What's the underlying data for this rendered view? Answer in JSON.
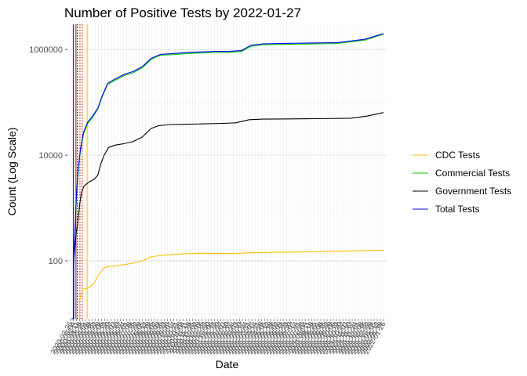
{
  "chart_data": {
    "type": "line",
    "title": "Number of Positive Tests by  2022-01-27",
    "xlabel": "Date",
    "ylabel": "Count (Log Scale)",
    "y_scale": "log10",
    "ylim": [
      8,
      3000000
    ],
    "y_ticks": [
      {
        "value": 100,
        "label": "100"
      },
      {
        "value": 10000,
        "label": "10000"
      },
      {
        "value": 1000000,
        "label": "1000000"
      }
    ],
    "x_range": [
      "2020-02-26",
      "2022-01-27"
    ],
    "x_tick_labels": [
      "2020-02-26",
      "2020-03-04",
      "2020-03-11",
      "2020-03-18",
      "2020-03-25",
      "2020-04-01",
      "2020-04-08",
      "2020-04-15",
      "2020-04-22",
      "2020-04-29",
      "2020-05-06",
      "2020-05-13",
      "2020-05-20",
      "2020-05-27",
      "2020-06-03",
      "2020-06-10",
      "2020-06-17",
      "2020-06-24",
      "2020-07-01",
      "2020-07-08",
      "2020-07-15",
      "2020-07-22",
      "2020-07-29",
      "2020-08-05",
      "2020-08-12",
      "2020-08-19",
      "2020-08-26",
      "2020-09-02",
      "2020-09-09",
      "2020-09-16",
      "2020-09-23",
      "2020-09-30",
      "2020-10-07",
      "2020-10-14",
      "2020-10-21",
      "2020-10-28",
      "2020-11-04",
      "2020-11-11",
      "2020-11-18",
      "2020-11-25",
      "2020-12-02",
      "2020-12-09",
      "2020-12-16",
      "2020-12-23",
      "2020-12-30",
      "2021-01-06",
      "2021-01-13",
      "2021-01-20",
      "2021-01-27",
      "2021-02-03",
      "2021-02-10",
      "2021-02-17",
      "2021-02-24",
      "2021-03-03",
      "2021-03-10",
      "2021-03-17",
      "2021-03-24",
      "2021-03-31",
      "2021-04-07",
      "2021-04-14",
      "2021-04-21",
      "2021-04-28",
      "2021-05-05",
      "2021-05-12",
      "2021-05-19",
      "2021-05-26",
      "2021-06-02",
      "2021-06-09",
      "2021-06-16",
      "2021-06-23",
      "2021-06-30",
      "2021-07-07",
      "2021-07-14",
      "2021-07-21",
      "2021-07-28",
      "2021-08-04",
      "2021-08-11",
      "2021-08-18",
      "2021-08-25",
      "2021-09-01",
      "2021-09-08",
      "2021-09-15",
      "2021-09-22",
      "2021-09-29",
      "2021-10-06",
      "2021-10-13",
      "2021-10-20",
      "2021-10-27",
      "2021-11-03",
      "2021-11-10",
      "2021-11-17",
      "2021-11-24",
      "2021-12-01",
      "2021-12-08",
      "2021-12-15",
      "2021-12-22",
      "2021-12-29",
      "2022-01-05",
      "2022-01-12",
      "2022-01-19",
      "2022-01-26"
    ],
    "legend_position": "right",
    "series": [
      {
        "name": "CDC Tests",
        "color": "#ffc000",
        "points": [
          [
            "2020-03-18",
            8
          ],
          [
            "2020-03-18",
            18
          ],
          [
            "2020-03-21",
            22
          ],
          [
            "2020-03-24",
            28
          ],
          [
            "2020-03-28",
            30
          ],
          [
            "2020-04-04",
            30
          ],
          [
            "2020-04-12",
            33
          ],
          [
            "2020-04-20",
            38
          ],
          [
            "2020-04-26",
            48
          ],
          [
            "2020-05-01",
            55
          ],
          [
            "2020-05-10",
            72
          ],
          [
            "2020-05-20",
            78
          ],
          [
            "2020-06-05",
            80
          ],
          [
            "2020-06-25",
            85
          ],
          [
            "2020-07-15",
            90
          ],
          [
            "2020-08-05",
            100
          ],
          [
            "2020-08-25",
            120
          ],
          [
            "2020-09-10",
            125
          ],
          [
            "2020-10-05",
            130
          ],
          [
            "2020-11-01",
            135
          ],
          [
            "2020-12-15",
            140
          ],
          [
            "2021-01-15",
            138
          ],
          [
            "2021-03-01",
            138
          ],
          [
            "2021-04-01",
            142
          ],
          [
            "2021-06-01",
            145
          ],
          [
            "2021-08-15",
            148
          ],
          [
            "2021-10-15",
            152
          ],
          [
            "2021-12-01",
            155
          ],
          [
            "2022-01-26",
            158
          ]
        ]
      },
      {
        "name": "Commercial Tests",
        "color": "#00cc00",
        "points": [
          [
            "2020-03-05",
            85
          ],
          [
            "2020-03-08",
            400
          ],
          [
            "2020-03-11",
            1500
          ],
          [
            "2020-03-15",
            5000
          ],
          [
            "2020-03-20",
            12000
          ],
          [
            "2020-03-27",
            25000
          ],
          [
            "2020-04-05",
            40000
          ],
          [
            "2020-04-15",
            50000
          ],
          [
            "2020-04-28",
            75000
          ],
          [
            "2020-05-08",
            130000
          ],
          [
            "2020-05-20",
            220000
          ],
          [
            "2020-06-05",
            260000
          ],
          [
            "2020-06-25",
            320000
          ],
          [
            "2020-07-15",
            360000
          ],
          [
            "2020-08-05",
            450000
          ],
          [
            "2020-08-25",
            650000
          ],
          [
            "2020-09-15",
            780000
          ],
          [
            "2020-10-15",
            800000
          ],
          [
            "2020-11-15",
            840000
          ],
          [
            "2020-12-15",
            860000
          ],
          [
            "2021-01-15",
            880000
          ],
          [
            "2021-02-15",
            880000
          ],
          [
            "2021-03-15",
            920000
          ],
          [
            "2021-04-05",
            1150000
          ],
          [
            "2021-05-01",
            1230000
          ],
          [
            "2021-07-01",
            1260000
          ],
          [
            "2021-09-01",
            1280000
          ],
          [
            "2021-10-15",
            1300000
          ],
          [
            "2021-12-15",
            1500000
          ],
          [
            "2022-01-26",
            1950000
          ]
        ]
      },
      {
        "name": "Government Tests",
        "color": "#000000",
        "points": [
          [
            "2020-03-05",
            100
          ],
          [
            "2020-03-08",
            200
          ],
          [
            "2020-03-11",
            350
          ],
          [
            "2020-03-14",
            500
          ],
          [
            "2020-03-18",
            1100
          ],
          [
            "2020-03-22",
            1900
          ],
          [
            "2020-03-28",
            2600
          ],
          [
            "2020-04-08",
            3100
          ],
          [
            "2020-04-20",
            3500
          ],
          [
            "2020-04-28",
            4200
          ],
          [
            "2020-05-05",
            7000
          ],
          [
            "2020-05-12",
            10000
          ],
          [
            "2020-05-22",
            14000
          ],
          [
            "2020-06-05",
            15500
          ],
          [
            "2020-06-25",
            16500
          ],
          [
            "2020-07-15",
            18000
          ],
          [
            "2020-08-05",
            22000
          ],
          [
            "2020-08-25",
            32000
          ],
          [
            "2020-09-10",
            36000
          ],
          [
            "2020-10-05",
            38000
          ],
          [
            "2020-11-15",
            38500
          ],
          [
            "2020-12-15",
            39000
          ],
          [
            "2021-02-01",
            40000
          ],
          [
            "2021-03-01",
            41000
          ],
          [
            "2021-04-01",
            47000
          ],
          [
            "2021-05-01",
            48000
          ],
          [
            "2021-07-01",
            48500
          ],
          [
            "2021-09-01",
            49000
          ],
          [
            "2021-11-15",
            50000
          ],
          [
            "2021-12-20",
            55000
          ],
          [
            "2022-01-26",
            64000
          ]
        ]
      },
      {
        "name": "Total Tests",
        "color": "#0000ff",
        "points": [
          [
            "2020-02-29",
            8
          ],
          [
            "2020-03-05",
            8
          ],
          [
            "2020-03-05",
            100
          ],
          [
            "2020-03-08",
            450
          ],
          [
            "2020-03-11",
            1700
          ],
          [
            "2020-03-15",
            5500
          ],
          [
            "2020-03-20",
            13000
          ],
          [
            "2020-03-27",
            27000
          ],
          [
            "2020-04-05",
            42000
          ],
          [
            "2020-04-15",
            53000
          ],
          [
            "2020-04-28",
            78000
          ],
          [
            "2020-05-08",
            135000
          ],
          [
            "2020-05-20",
            230000
          ],
          [
            "2020-06-05",
            275000
          ],
          [
            "2020-06-25",
            335000
          ],
          [
            "2020-07-15",
            380000
          ],
          [
            "2020-08-05",
            470000
          ],
          [
            "2020-08-25",
            680000
          ],
          [
            "2020-09-15",
            810000
          ],
          [
            "2020-10-15",
            840000
          ],
          [
            "2020-11-15",
            880000
          ],
          [
            "2020-12-15",
            900000
          ],
          [
            "2021-01-15",
            920000
          ],
          [
            "2021-02-15",
            920000
          ],
          [
            "2021-03-15",
            960000
          ],
          [
            "2021-04-05",
            1200000
          ],
          [
            "2021-05-01",
            1280000
          ],
          [
            "2021-07-01",
            1310000
          ],
          [
            "2021-09-01",
            1330000
          ],
          [
            "2021-10-15",
            1350000
          ],
          [
            "2021-12-15",
            1560000
          ],
          [
            "2022-01-26",
            2000000
          ]
        ]
      }
    ],
    "vertical_lines": [
      {
        "date": "2020-03-04",
        "color": "#0000ff",
        "style": "solid"
      },
      {
        "date": "2020-03-10",
        "color": "#c00000",
        "style": "solid"
      },
      {
        "date": "2020-03-13",
        "color": "#000000",
        "style": "dotted"
      },
      {
        "date": "2020-03-19",
        "color": "#c00000",
        "style": "dotted"
      },
      {
        "date": "2020-03-24",
        "color": "#c00000",
        "style": "dotted"
      },
      {
        "date": "2020-04-04",
        "color": "#ffc000",
        "style": "solid"
      }
    ]
  }
}
